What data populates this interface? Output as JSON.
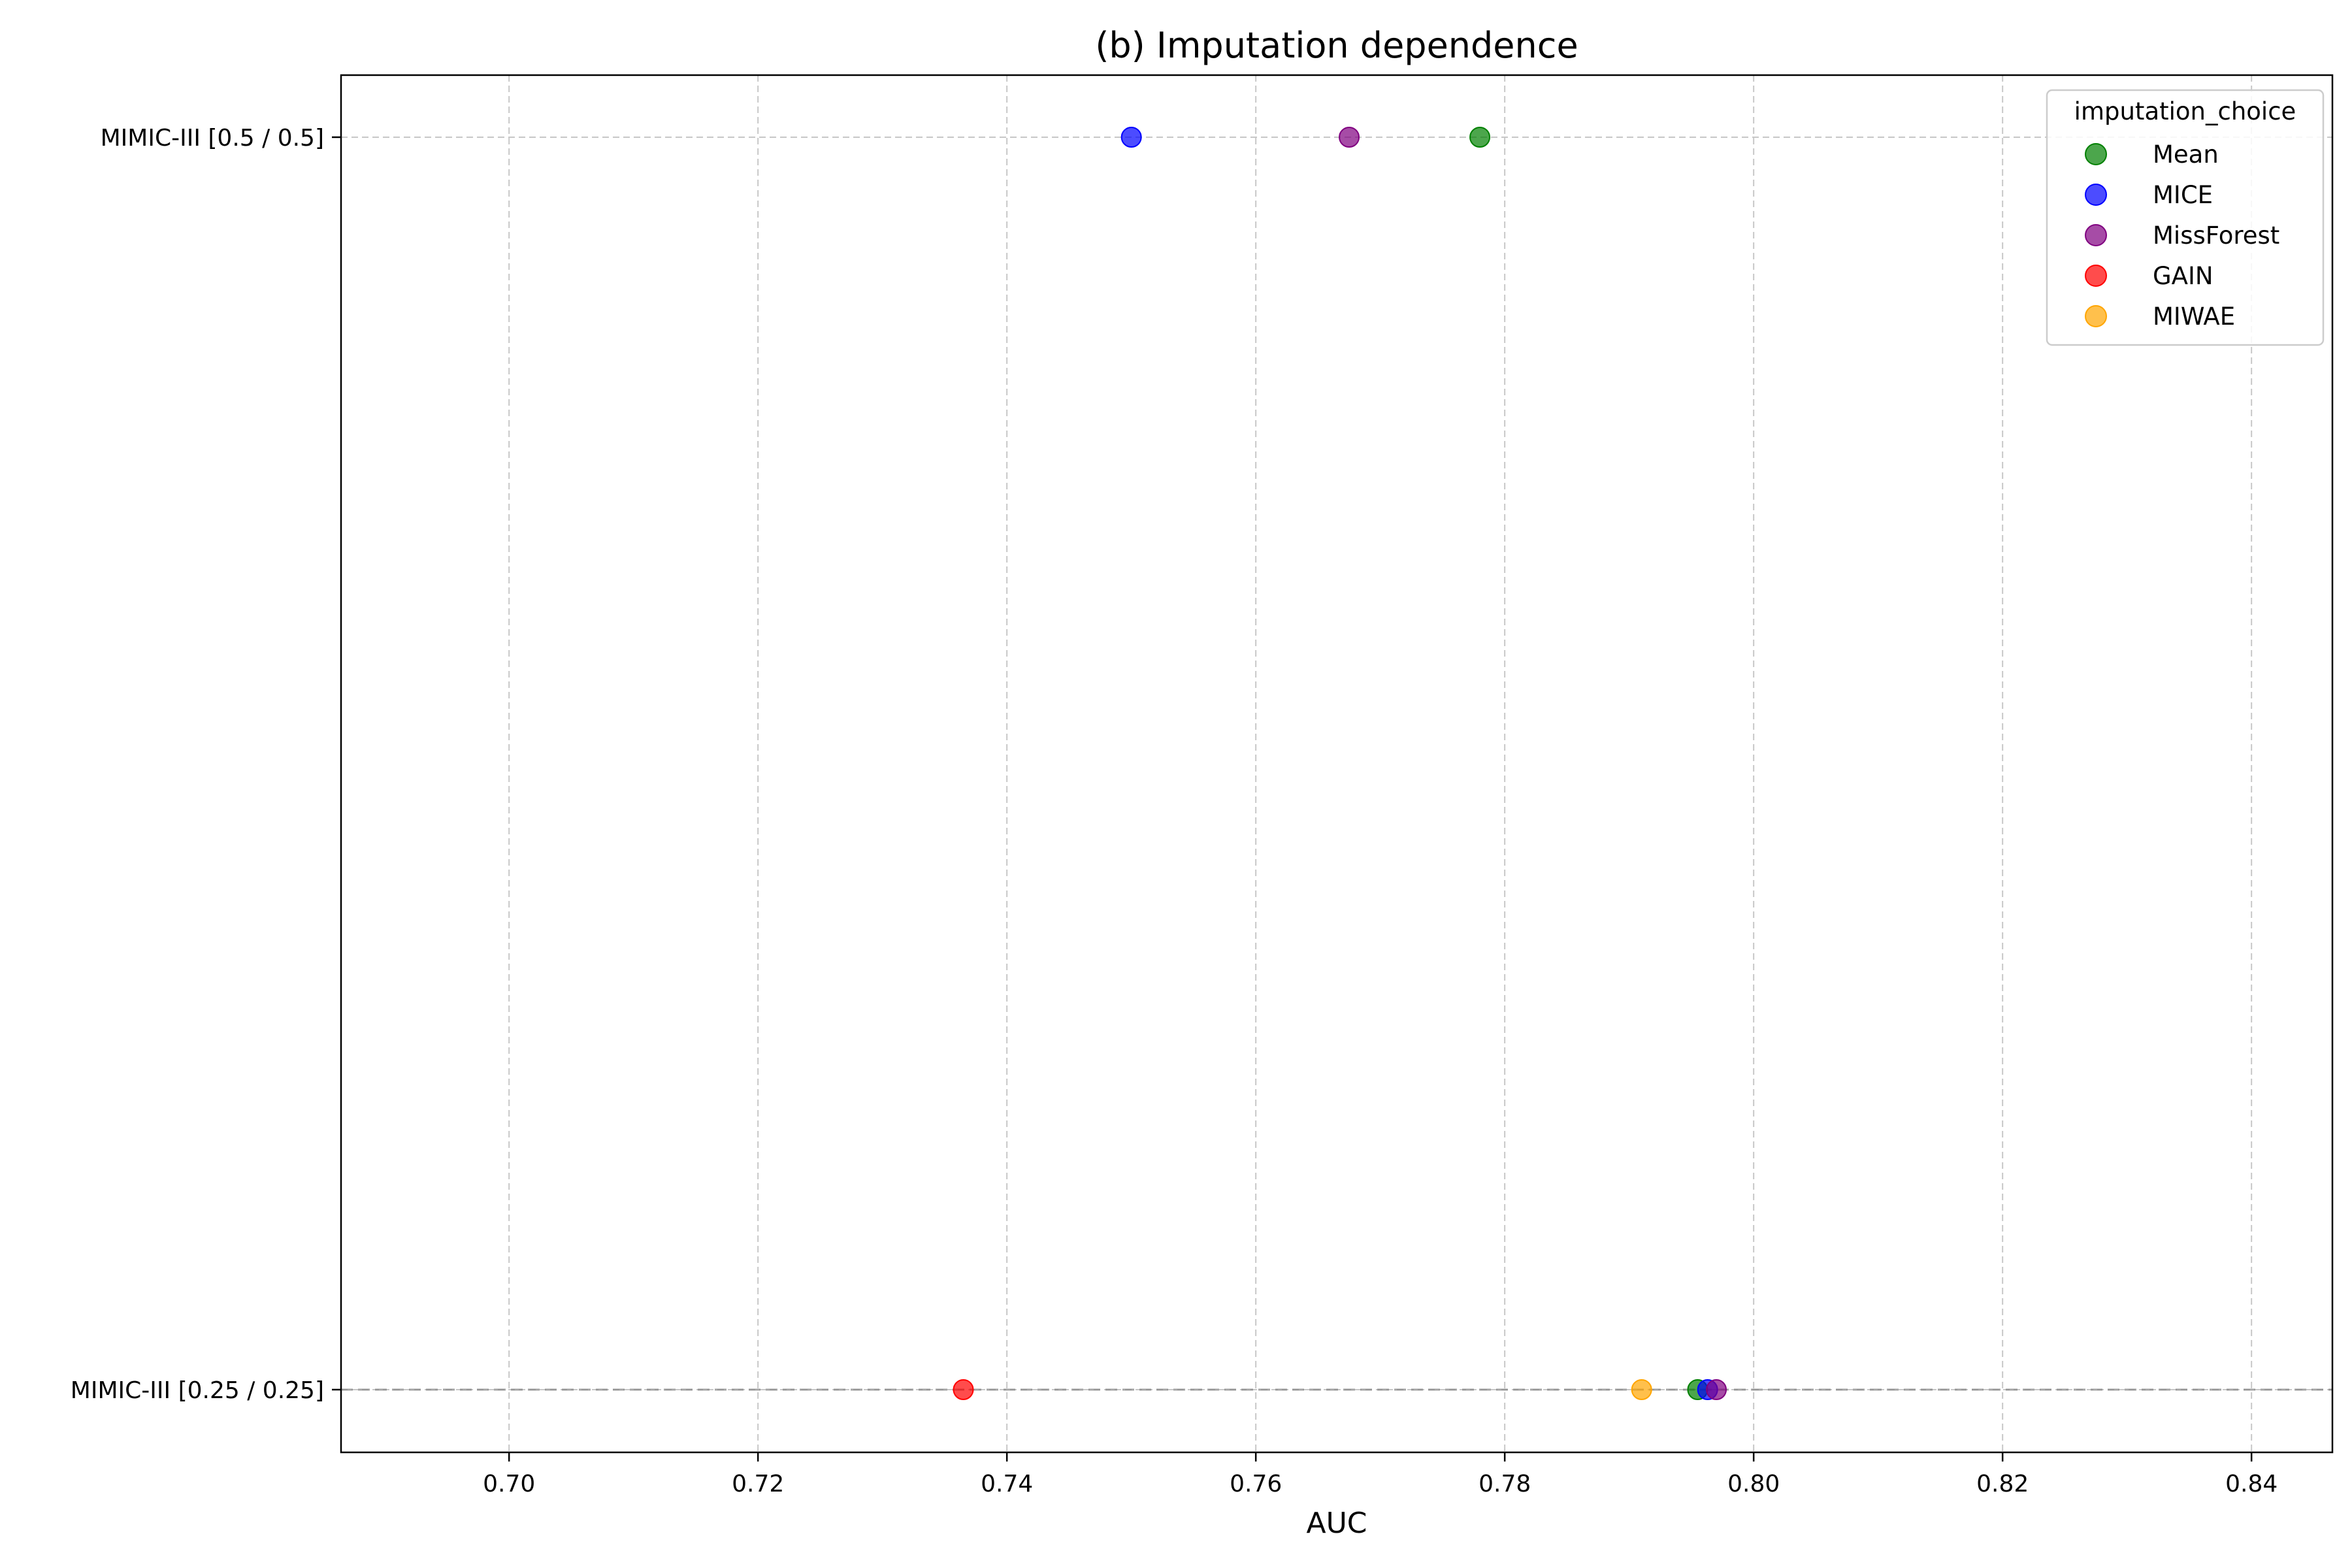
{
  "chart_data": {
    "type": "scatter",
    "title": "(b) Imputation dependence",
    "xlabel": "AUC",
    "ylabel": "",
    "xlim": [
      0.6865,
      0.8465
    ],
    "xticks": [
      0.7,
      0.72,
      0.74,
      0.76,
      0.78,
      0.8,
      0.82,
      0.84
    ],
    "xtick_labels": [
      "0.70",
      "0.72",
      "0.74",
      "0.76",
      "0.78",
      "0.80",
      "0.82",
      "0.84"
    ],
    "categories": [
      "MIMIC-III [0.5 / 0.5]",
      "MIMIC-III [0.25 / 0.25]"
    ],
    "grid": true,
    "legend": {
      "title": "imputation_choice",
      "placement": "top-right"
    },
    "series": [
      {
        "name": "Mean",
        "color": "#008000",
        "points": [
          {
            "category": "MIMIC-III [0.5 / 0.5]",
            "x": 0.778
          },
          {
            "category": "MIMIC-III [0.25 / 0.25]",
            "x": 0.7955
          }
        ]
      },
      {
        "name": "MICE",
        "color": "#0000ff",
        "points": [
          {
            "category": "MIMIC-III [0.5 / 0.5]",
            "x": 0.75
          },
          {
            "category": "MIMIC-III [0.25 / 0.25]",
            "x": 0.7963
          }
        ]
      },
      {
        "name": "MissForest",
        "color": "#800080",
        "points": [
          {
            "category": "MIMIC-III [0.5 / 0.5]",
            "x": 0.7675
          },
          {
            "category": "MIMIC-III [0.25 / 0.25]",
            "x": 0.797
          }
        ]
      },
      {
        "name": "GAIN",
        "color": "#ff0000",
        "points": [
          {
            "category": "MIMIC-III [0.25 / 0.25]",
            "x": 0.7365
          }
        ]
      },
      {
        "name": "MIWAE",
        "color": "#ffa500",
        "points": [
          {
            "category": "MIMIC-III [0.25 / 0.25]",
            "x": 0.791
          }
        ]
      }
    ]
  }
}
